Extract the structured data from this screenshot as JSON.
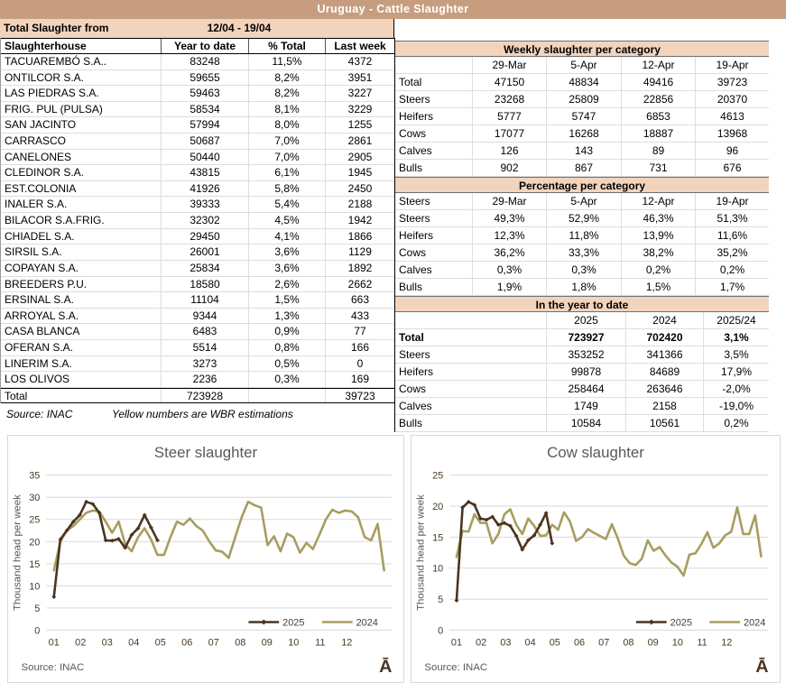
{
  "title_bar": {
    "title": "Uruguay - Cattle Slaughter"
  },
  "summary": {
    "label": "Total Slaughter from",
    "period": "12/04 - 19/04"
  },
  "slaughterhouse_table": {
    "columns": [
      "Slaughterhouse",
      "Year to date",
      "% Total",
      "Last week"
    ],
    "rows": [
      [
        "TACUAREMBÓ S.A..",
        "83248",
        "11,5%",
        "4372"
      ],
      [
        "ONTILCOR S.A.",
        "59655",
        "8,2%",
        "3951"
      ],
      [
        "LAS PIEDRAS S.A.",
        "59463",
        "8,2%",
        "3227"
      ],
      [
        "FRIG. PUL (PULSA)",
        "58534",
        "8,1%",
        "3229"
      ],
      [
        "SAN JACINTO",
        "57994",
        "8,0%",
        "1255"
      ],
      [
        "CARRASCO",
        "50687",
        "7,0%",
        "2861"
      ],
      [
        "CANELONES",
        "50440",
        "7,0%",
        "2905"
      ],
      [
        "CLEDINOR S.A.",
        "43815",
        "6,1%",
        "1945"
      ],
      [
        "EST.COLONIA",
        "41926",
        "5,8%",
        "2450"
      ],
      [
        "INALER S.A.",
        "39333",
        "5,4%",
        "2188"
      ],
      [
        "BILACOR S.A.FRIG.",
        "32302",
        "4,5%",
        "1942"
      ],
      [
        "CHIADEL S.A.",
        "29450",
        "4,1%",
        "1866"
      ],
      [
        "SIRSIL S.A.",
        "26001",
        "3,6%",
        "1129"
      ],
      [
        "COPAYAN S.A.",
        "25834",
        "3,6%",
        "1892"
      ],
      [
        "BREEDERS P.U.",
        "18580",
        "2,6%",
        "2662"
      ],
      [
        "ERSINAL S.A.",
        "11104",
        "1,5%",
        "663"
      ],
      [
        "ARROYAL S.A.",
        "9344",
        "1,3%",
        "433"
      ],
      [
        "CASA BLANCA",
        "6483",
        "0,9%",
        "77"
      ],
      [
        "OFERAN S.A.",
        "5514",
        "0,8%",
        "166"
      ],
      [
        "LINERIM S.A.",
        "3273",
        "0,5%",
        "0"
      ],
      [
        "LOS OLIVOS",
        "2236",
        "0,3%",
        "169"
      ]
    ],
    "total": [
      "Total",
      "723928",
      "",
      "39723"
    ],
    "source": "Source: INAC",
    "note": "Yellow numbers are WBR estimations"
  },
  "weekly_table": {
    "title": "Weekly slaughter per category",
    "columns": [
      "",
      "29-Mar",
      "5-Apr",
      "12-Apr",
      "19-Apr"
    ],
    "rows": [
      [
        "Total",
        "47150",
        "48834",
        "49416",
        "39723"
      ],
      [
        "Steers",
        "23268",
        "25809",
        "22856",
        "20370"
      ],
      [
        "Heifers",
        "5777",
        "5747",
        "6853",
        "4613"
      ],
      [
        "Cows",
        "17077",
        "16268",
        "18887",
        "13968"
      ],
      [
        "Calves",
        "126",
        "143",
        "89",
        "96"
      ],
      [
        "Bulls",
        "902",
        "867",
        "731",
        "676"
      ]
    ]
  },
  "percentage_table": {
    "title": "Percentage per category",
    "columns": [
      "Steers",
      "29-Mar",
      "5-Apr",
      "12-Apr",
      "19-Apr"
    ],
    "rows": [
      [
        "Steers",
        "49,3%",
        "52,9%",
        "46,3%",
        "51,3%"
      ],
      [
        "Heifers",
        "12,3%",
        "11,8%",
        "13,9%",
        "11,6%"
      ],
      [
        "Cows",
        "36,2%",
        "33,3%",
        "38,2%",
        "35,2%"
      ],
      [
        "Calves",
        "0,3%",
        "0,3%",
        "0,2%",
        "0,2%"
      ],
      [
        "Bulls",
        "1,9%",
        "1,8%",
        "1,5%",
        "1,7%"
      ]
    ]
  },
  "ytd_table": {
    "title": "In the year to date",
    "columns": [
      "",
      "2025",
      "2024",
      "2025/24"
    ],
    "rows": [
      [
        "Total",
        "723927",
        "702420",
        "3,1%"
      ],
      [
        "Steers",
        "353252",
        "341366",
        "3,5%"
      ],
      [
        "Heifers",
        "99878",
        "84689",
        "17,9%"
      ],
      [
        "Cows",
        "258464",
        "263646",
        "-2,0%"
      ],
      [
        "Calves",
        "1749",
        "2158",
        "-19,0%"
      ],
      [
        "Bulls",
        "10584",
        "10561",
        "0,2%"
      ]
    ]
  },
  "chart_watermark": "Ā",
  "colors": {
    "title_tan": "#c69e7f",
    "band_peach": "#f2d4bd",
    "series_2025": "#4a3420",
    "series_2024": "#a79d5e",
    "grid": "#d9d9d9",
    "axis_text": "#4a3a24",
    "chart_text": "#595959"
  },
  "chart_data": [
    {
      "type": "line",
      "title": "Steer slaughter",
      "ylabel": "Thousand head per week",
      "xlabel": "",
      "ylim": [
        0,
        35
      ],
      "yticks": [
        0,
        5,
        10,
        15,
        20,
        25,
        30,
        35
      ],
      "x_tick_labels": [
        "01",
        "02",
        "03",
        "04",
        "05",
        "06",
        "07",
        "08",
        "09",
        "10",
        "11",
        "12"
      ],
      "x_unit": "week of year",
      "grid": true,
      "legend_position": "bottom-right",
      "source": "Source: INAC",
      "series": [
        {
          "name": "2025",
          "color": "#4a3420",
          "markers": true,
          "values": [
            7.5,
            20.5,
            22.5,
            24.5,
            26,
            29,
            28.5,
            26.5,
            20.3,
            20.2,
            20.6,
            18.6,
            21.5,
            23,
            26,
            23.2,
            20.3
          ]
        },
        {
          "name": "2024",
          "color": "#a79d5e",
          "markers": false,
          "values": [
            13.5,
            20,
            22.5,
            23.5,
            25,
            26.5,
            27,
            26.8,
            24.5,
            22,
            24.5,
            19.5,
            17.8,
            21,
            23,
            20.5,
            17,
            17,
            21,
            24.5,
            23.8,
            25.2,
            23.5,
            22.5,
            20,
            18,
            17.7,
            16.3,
            21,
            25.5,
            29,
            28.2,
            27.7,
            19.2,
            21.2,
            17.8,
            21.8,
            21,
            17.5,
            19.7,
            18.3,
            21.5,
            25,
            27.2,
            26.5,
            27,
            26.8,
            25.5,
            21,
            20.3,
            24,
            13.5
          ]
        }
      ]
    },
    {
      "type": "line",
      "title": "Cow slaughter",
      "ylabel": "Thousand head per week",
      "xlabel": "",
      "ylim": [
        0,
        25
      ],
      "yticks": [
        0,
        5,
        10,
        15,
        20,
        25
      ],
      "x_tick_labels": [
        "01",
        "02",
        "03",
        "04",
        "05",
        "06",
        "07",
        "08",
        "09",
        "10",
        "11",
        "12"
      ],
      "x_unit": "week of year",
      "grid": true,
      "legend_position": "bottom-right",
      "source": "Source: INAC",
      "series": [
        {
          "name": "2025",
          "color": "#4a3420",
          "markers": true,
          "values": [
            4.8,
            19.8,
            20.7,
            20.2,
            18,
            17.8,
            18.3,
            17,
            17.3,
            16.8,
            15.2,
            13,
            14.5,
            15.3,
            17,
            18.9,
            14
          ]
        },
        {
          "name": "2024",
          "color": "#a79d5e",
          "markers": false,
          "values": [
            11.8,
            16,
            15.9,
            18.7,
            17.3,
            17.3,
            14,
            15.5,
            18.7,
            19.5,
            17,
            15.5,
            18,
            16.8,
            15.2,
            15.3,
            17,
            16.2,
            19,
            17.5,
            14.4,
            15,
            16.3,
            15.7,
            15.2,
            14.7,
            17.1,
            14.8,
            12,
            10.8,
            10.5,
            11.5,
            14.5,
            12.8,
            13.4,
            12,
            10.9,
            10.2,
            8.8,
            12.2,
            12.4,
            13.9,
            15.8,
            13.3,
            14,
            15.3,
            15.9,
            19.8,
            15.5,
            15.5,
            18.5,
            11.9
          ]
        }
      ]
    }
  ]
}
